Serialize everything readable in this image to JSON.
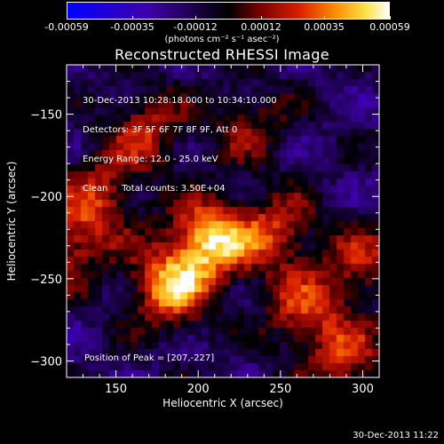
{
  "colorbar": {
    "tick_labels": [
      "-0.00059",
      "-0.00035",
      "-0.00012",
      "0.00012",
      "0.00035",
      "0.00059"
    ],
    "units_label": "(photons cm⁻² s⁻¹ asec⁻²)",
    "range": [
      -0.00059,
      0.00059
    ],
    "colors": [
      "#0000ff",
      "#3f00aa",
      "#000000",
      "#7a0000",
      "#d82000",
      "#ff8a00",
      "#ffe34a",
      "#ffffff"
    ]
  },
  "chart_data": {
    "type": "heatmap",
    "title": "Reconstructed RHESSI Image",
    "xlabel": "Heliocentric X (arcsec)",
    "ylabel": "Heliocentric Y (arcsec)",
    "xlim": [
      120,
      310
    ],
    "ylim": [
      -310,
      -120
    ],
    "xticks": [
      150,
      200,
      250,
      300
    ],
    "yticks": [
      -150,
      -200,
      -250,
      -300
    ],
    "xtick_labels": [
      "150",
      "200",
      "250",
      "300"
    ],
    "ytick_labels": [
      "−150",
      "−200",
      "−250",
      "−300"
    ],
    "sources": [
      {
        "x": 207,
        "y": -227,
        "intensity": 1.0
      },
      {
        "x": 183,
        "y": -255,
        "intensity": 0.9
      },
      {
        "x": 140,
        "y": -200,
        "intensity": 0.55
      },
      {
        "x": 168,
        "y": -160,
        "intensity": 0.55
      },
      {
        "x": 247,
        "y": -222,
        "intensity": 0.6
      },
      {
        "x": 265,
        "y": -270,
        "intensity": 0.6
      },
      {
        "x": 290,
        "y": -300,
        "intensity": 0.55
      },
      {
        "x": 300,
        "y": -240,
        "intensity": 0.5
      },
      {
        "x": 122,
        "y": -230,
        "intensity": 0.55
      },
      {
        "x": 230,
        "y": -155,
        "intensity": 0.4
      }
    ],
    "annotations": {
      "info_lines": [
        "30-Dec-2013 10:28:18.000 to 10:34:10.000",
        "Detectors: 3F 5F 6F 7F 8F 9F, Att 0",
        "Energy Range: 12.0 - 25.0 keV",
        "Clean     Total counts: 3.50E+04"
      ],
      "peak": "Position of Peak = [207,-227]"
    }
  },
  "timestamp": "30-Dec-2013 11:22"
}
